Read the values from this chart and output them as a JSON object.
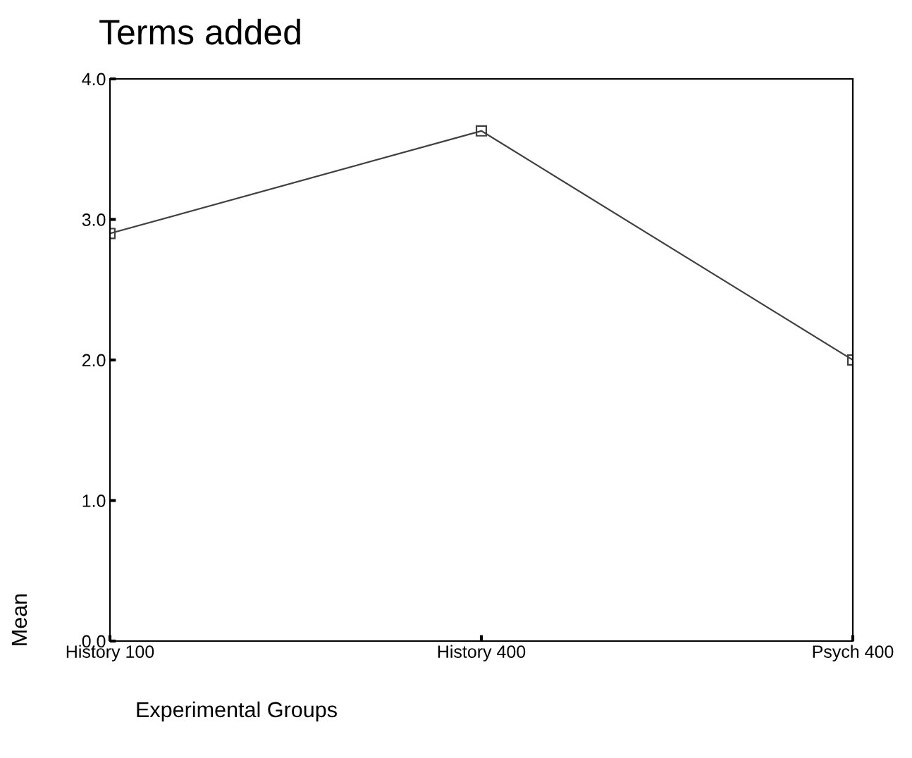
{
  "chart_data": {
    "type": "line",
    "title": "Terms added",
    "xlabel": "Experimental Groups",
    "ylabel": "Mean",
    "categories": [
      "History 100",
      "History 400",
      "Psych 400"
    ],
    "series": [
      {
        "color": "#404040",
        "values": [
          2.9,
          3.63,
          2.0
        ]
      }
    ],
    "ylim": [
      0,
      4
    ],
    "yticks": [
      {
        "value": 0,
        "label": "0.0"
      },
      {
        "value": 1,
        "label": "1.0"
      },
      {
        "value": 2,
        "label": "2.0"
      },
      {
        "value": 3,
        "label": "3.0"
      },
      {
        "value": 4,
        "label": "4.0"
      }
    ],
    "marker": "square",
    "line_style": "solid",
    "grid": false,
    "legend": false
  }
}
